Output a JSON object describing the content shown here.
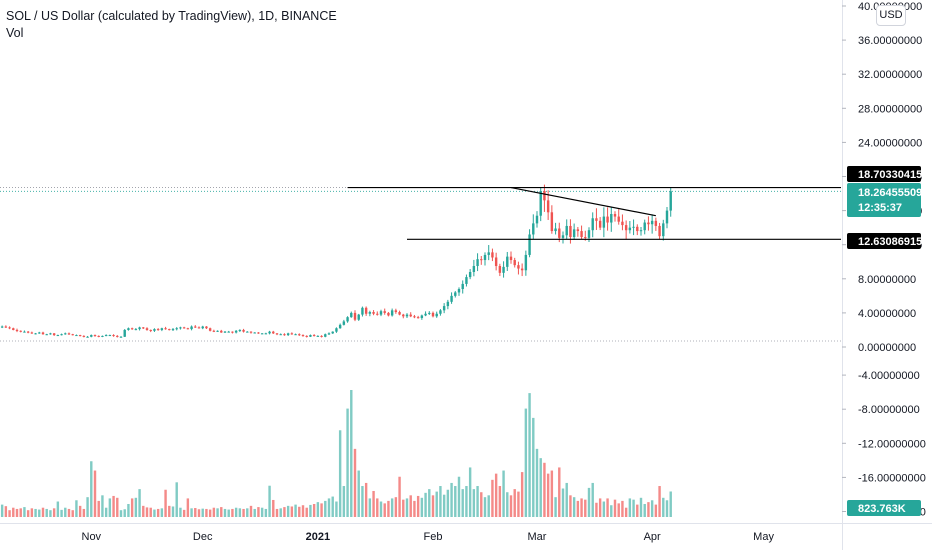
{
  "legend": {
    "title": "SOL / US Dollar (calculated by TradingView), 1D, BINANCE",
    "indicator": "Vol"
  },
  "currency_button": "USD",
  "colors": {
    "up": "#26a69a",
    "down": "#ef5350",
    "vol_up": "#80cbc4",
    "vol_down": "#f48a88",
    "line": "#000000",
    "axis_text": "#131722"
  },
  "labels": {
    "resistance": "18.70330415",
    "last_price": "18.26455509",
    "countdown": "12:35:37",
    "support": "12.63086915",
    "volume": "823.763K"
  },
  "chart_data": {
    "type": "candlestick",
    "title": "SOL / US Dollar (calculated by TradingView), 1D, BINANCE",
    "y_axis_ticks": [
      "40.00000000",
      "36.00000000",
      "32.00000000",
      "28.00000000",
      "24.00000000",
      "20.00000000",
      "16.00000000",
      "12.00000000",
      "8.00000000",
      "4.00000000",
      "0.00000000",
      "-4.00000000",
      "-8.00000000",
      "-12.00000000",
      "-16.00000000",
      "-20.00000000"
    ],
    "y_axis_values": [
      40,
      36,
      32,
      28,
      24,
      20,
      16,
      12,
      8,
      4,
      0,
      -4,
      -8,
      -12,
      -16,
      -20
    ],
    "x_axis_ticks": [
      "Nov",
      "Dec",
      "2021",
      "Feb",
      "Mar",
      "Apr",
      "May"
    ],
    "x_axis_dates": [
      "2020-11-01",
      "2020-12-01",
      "2021-01-01",
      "2021-02-01",
      "2021-03-01",
      "2021-04-01",
      "2021-05-01"
    ],
    "date_range": [
      "2020-10-01",
      "2021-03-27"
    ],
    "horizontal_lines": [
      {
        "name": "resistance",
        "value": 18.70330415,
        "from": "2021-01-09"
      },
      {
        "name": "support",
        "value": 12.63086915,
        "from": "2021-01-25"
      }
    ],
    "trend_line": {
      "from": [
        "2021-02-22",
        18.7
      ],
      "to": [
        "2021-04-02",
        15.4
      ]
    },
    "close_series": [
      2.5,
      2.7,
      2.9,
      2.6,
      2.8,
      2.5,
      2.3,
      2.4,
      2.3,
      2.2,
      2.0,
      1.9,
      1.8,
      1.8,
      1.7,
      1.6,
      1.6,
      1.7,
      1.5,
      1.5,
      1.6,
      1.4,
      1.4,
      1.5,
      1.6,
      1.5,
      1.4,
      1.4,
      1.3,
      1.2,
      1.2,
      1.4,
      1.3,
      1.2,
      1.3,
      1.4,
      1.4,
      1.3,
      1.2,
      1.2,
      2.0,
      2.2,
      2.1,
      2.1,
      2.3,
      2.2,
      2.0,
      1.9,
      2.1,
      2.0,
      2.2,
      2.1,
      2.0,
      2.1,
      2.2,
      2.3,
      2.2,
      2.1,
      2.4,
      2.3,
      2.2,
      2.4,
      2.2,
      1.9,
      1.8,
      1.9,
      1.7,
      1.8,
      1.8,
      1.7,
      1.9,
      2.0,
      1.8,
      1.8,
      1.7,
      1.7,
      1.6,
      1.6,
      1.6,
      1.8,
      1.6,
      1.5,
      1.5,
      1.4,
      1.6,
      1.5,
      1.5,
      1.4,
      1.3,
      1.2,
      1.4,
      1.3,
      1.3,
      1.2,
      1.5,
      1.6,
      1.8,
      2.2,
      2.6,
      3.0,
      3.5,
      4.0,
      3.2,
      3.8,
      4.6,
      3.9,
      4.1,
      3.9,
      3.8,
      4.2,
      4.0,
      3.7,
      4.3,
      4.1,
      3.8,
      3.6,
      3.8,
      3.6,
      3.5,
      3.4,
      3.7,
      3.9,
      4.0,
      3.6,
      3.9,
      4.3,
      4.8,
      5.3,
      6.0,
      6.4,
      6.8,
      7.4,
      8.2,
      8.8,
      9.5,
      10.3,
      10.2,
      10.8,
      11.1,
      10.5,
      9.5,
      8.7,
      9.4,
      10.6,
      10.2,
      9.6,
      9.2,
      9.0,
      10.8,
      13.2,
      14.5,
      15.4,
      18.3,
      17.2,
      15.8,
      13.6,
      13.9,
      12.8,
      13.1,
      14.2,
      12.9,
      13.8,
      13.6,
      12.9,
      12.8,
      13.7,
      15.1,
      14.8,
      14.0,
      15.3,
      14.6,
      15.6,
      15.3,
      14.7,
      14.3,
      13.7,
      14.0,
      14.1,
      13.6,
      13.7,
      14.6,
      14.4,
      14.8,
      14.2,
      13.0,
      14.5,
      16.0,
      18.26
    ],
    "volume_unit": "K",
    "last_volume": 823.763,
    "volume_series": [
      700,
      500,
      300,
      800,
      250,
      200,
      600,
      400,
      350,
      220,
      300,
      260,
      280,
      320,
      220,
      280,
      260,
      240,
      300,
      260,
      220,
      280,
      500,
      230,
      300,
      260,
      220,
      540,
      360,
      260,
      640,
      1800,
      1500,
      520,
      700,
      300,
      600,
      680,
      620,
      220,
      250,
      420,
      600,
      620,
      900,
      360,
      310,
      300,
      240,
      260,
      280,
      880,
      360,
      340,
      1120,
      300,
      230,
      600,
      280,
      290,
      250,
      270,
      260,
      240,
      300,
      280,
      320,
      260,
      240,
      260,
      300,
      280,
      260,
      280,
      360,
      260,
      320,
      300,
      260,
      1010,
      550,
      260,
      280,
      320,
      360,
      340,
      400,
      330,
      380,
      300,
      390,
      420,
      480,
      440,
      520,
      600,
      660,
      500,
      2800,
      1000,
      3500,
      4100,
      2200,
      1500,
      1000,
      1100,
      600,
      840,
      600,
      500,
      440,
      520,
      600,
      640,
      1300,
      560,
      600,
      700,
      520,
      680,
      620,
      780,
      900,
      700,
      820,
      1000,
      720,
      880,
      1100,
      1000,
      1300,
      900,
      1000,
      1600,
      900,
      1000,
      800,
      640,
      700,
      1200,
      1400,
      1000,
      1500,
      800,
      700,
      900,
      820,
      1450,
      3500,
      4000,
      3200,
      2200,
      1900,
      1750,
      1400,
      1500,
      640,
      1600,
      920,
      1100,
      700,
      640,
      520,
      600,
      560,
      940,
      1100,
      460,
      600,
      500,
      600,
      380,
      560,
      440,
      520,
      300,
      600,
      560,
      400,
      620,
      420,
      480,
      540,
      400,
      1000,
      620,
      540,
      823.763
    ]
  }
}
